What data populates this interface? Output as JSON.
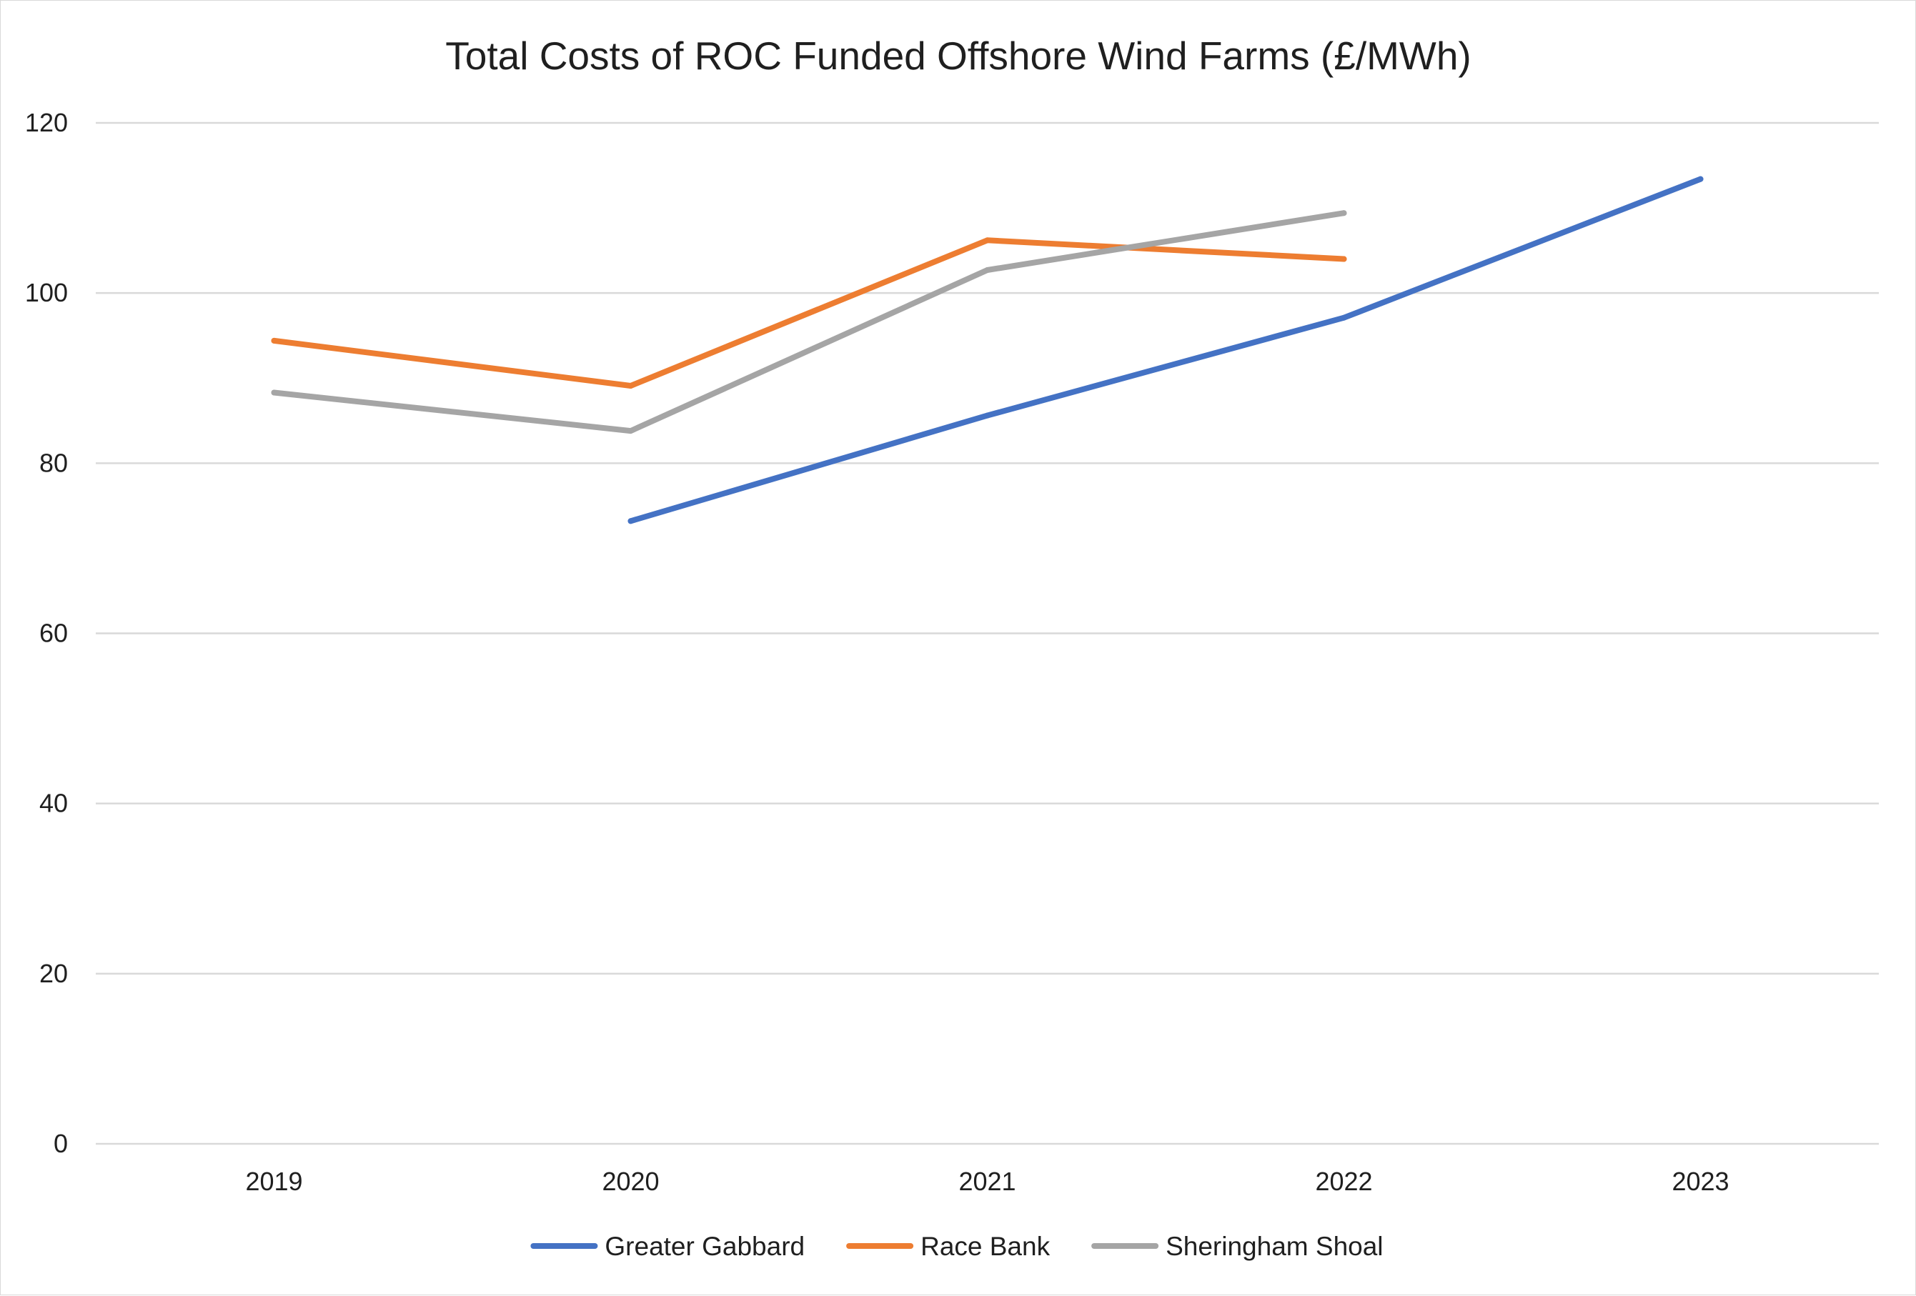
{
  "chart_data": {
    "type": "line",
    "title": "Total Costs of ROC Funded Offshore Wind Farms (£/MWh)",
    "xlabel": "",
    "ylabel": "",
    "categories": [
      "2019",
      "2020",
      "2021",
      "2022",
      "2023"
    ],
    "ylim": [
      0,
      120
    ],
    "yticks": [
      0,
      20,
      40,
      60,
      80,
      100,
      120
    ],
    "grid": true,
    "legend_position": "bottom",
    "series": [
      {
        "name": "Greater Gabbard",
        "color": "#4472C4",
        "values": [
          null,
          73.2,
          85.6,
          97.1,
          113.4
        ]
      },
      {
        "name": "Race Bank",
        "color": "#ED7D31",
        "values": [
          94.4,
          89.1,
          106.2,
          104.0,
          null
        ]
      },
      {
        "name": "Sheringham Shoal",
        "color": "#A5A5A5",
        "values": [
          88.3,
          83.8,
          102.7,
          109.4,
          null
        ]
      }
    ]
  }
}
